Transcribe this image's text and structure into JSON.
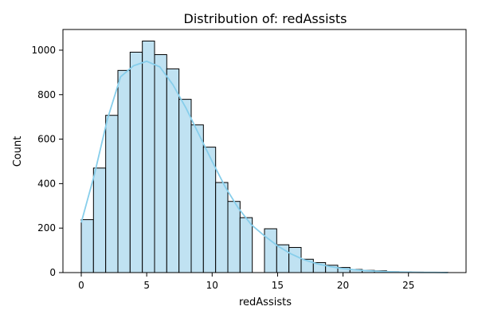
{
  "chart_data": {
    "type": "bar",
    "title": "Distribution of: redAssists",
    "xlabel": "redAssists",
    "ylabel": "Count",
    "bin_width": 0.9333,
    "bins": [
      {
        "start": 0.0,
        "end": 0.933,
        "count": 238
      },
      {
        "start": 0.933,
        "end": 1.867,
        "count": 470
      },
      {
        "start": 1.867,
        "end": 2.8,
        "count": 707
      },
      {
        "start": 2.8,
        "end": 3.733,
        "count": 909
      },
      {
        "start": 3.733,
        "end": 4.667,
        "count": 991
      },
      {
        "start": 4.667,
        "end": 5.6,
        "count": 1041
      },
      {
        "start": 5.6,
        "end": 6.533,
        "count": 980
      },
      {
        "start": 6.533,
        "end": 7.467,
        "count": 916
      },
      {
        "start": 7.467,
        "end": 8.4,
        "count": 779
      },
      {
        "start": 8.4,
        "end": 9.333,
        "count": 664
      },
      {
        "start": 9.333,
        "end": 10.267,
        "count": 564
      },
      {
        "start": 10.267,
        "end": 11.2,
        "count": 405
      },
      {
        "start": 11.2,
        "end": 12.133,
        "count": 320
      },
      {
        "start": 12.133,
        "end": 13.067,
        "count": 247
      },
      {
        "start": 13.067,
        "end": 14.0,
        "count": 0
      },
      {
        "start": 14.0,
        "end": 14.933,
        "count": 197
      },
      {
        "start": 14.933,
        "end": 15.867,
        "count": 125
      },
      {
        "start": 15.867,
        "end": 16.8,
        "count": 113
      },
      {
        "start": 16.8,
        "end": 17.733,
        "count": 60
      },
      {
        "start": 17.733,
        "end": 18.667,
        "count": 45
      },
      {
        "start": 18.667,
        "end": 19.6,
        "count": 33
      },
      {
        "start": 19.6,
        "end": 20.533,
        "count": 23
      },
      {
        "start": 20.533,
        "end": 21.467,
        "count": 14
      },
      {
        "start": 21.467,
        "end": 22.4,
        "count": 10
      },
      {
        "start": 22.4,
        "end": 23.333,
        "count": 8
      },
      {
        "start": 23.333,
        "end": 24.267,
        "count": 4
      },
      {
        "start": 24.267,
        "end": 25.2,
        "count": 3
      },
      {
        "start": 25.2,
        "end": 26.133,
        "count": 2
      },
      {
        "start": 26.133,
        "end": 27.067,
        "count": 1
      },
      {
        "start": 27.067,
        "end": 28.0,
        "count": 1
      }
    ],
    "kde": {
      "x": [
        0,
        1,
        2,
        3,
        4,
        5,
        6,
        7,
        8,
        9,
        10,
        11,
        12,
        13,
        14,
        15,
        16,
        17,
        18,
        19,
        20,
        21,
        22,
        23,
        24,
        25,
        26,
        27,
        28
      ],
      "y": [
        225,
        440,
        690,
        880,
        930,
        950,
        925,
        845,
        740,
        620,
        500,
        385,
        290,
        215,
        165,
        120,
        85,
        58,
        40,
        27,
        18,
        12,
        8,
        5,
        3,
        2,
        1,
        1,
        0
      ]
    },
    "xlim": [
      -1.4,
      29.4
    ],
    "ylim": [
      0,
      1093
    ],
    "xticks": [
      0,
      5,
      10,
      15,
      20,
      25
    ],
    "yticks": [
      0,
      200,
      400,
      600,
      800,
      1000
    ],
    "bar_fill": "#c0e2f2",
    "bar_edge": "#000000",
    "kde_color": "#87ceeb",
    "grid": false,
    "legend": "none"
  }
}
